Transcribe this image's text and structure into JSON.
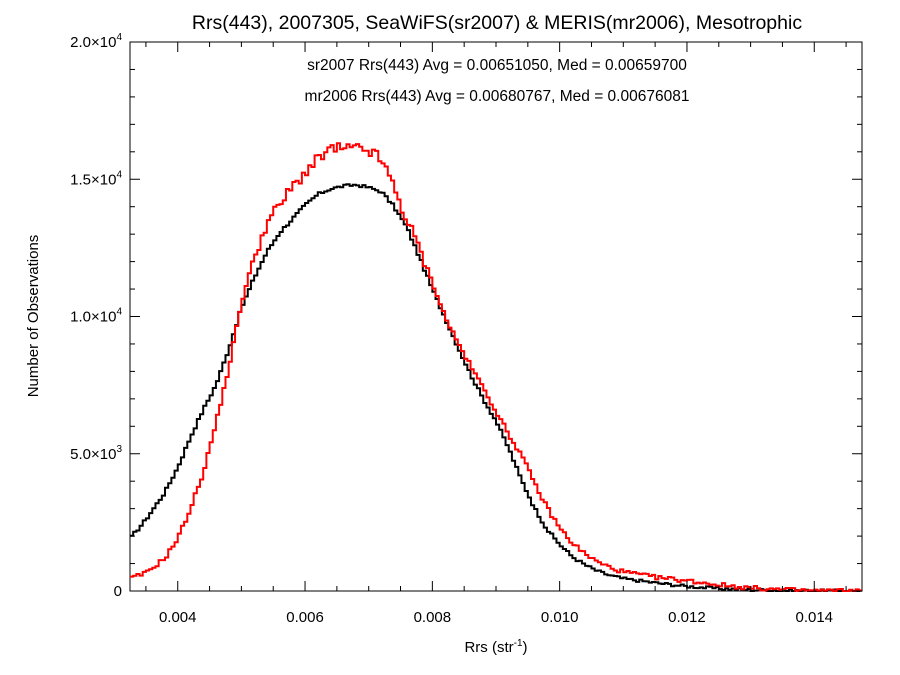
{
  "chart_data": {
    "type": "line",
    "title": "Rrs(443), 2007305, SeaWiFS(sr2007) & MERIS(mr2006), Mesotrophic",
    "xlabel": "Rrs (str",
    "xlabel_sup": "-1",
    "xlabel_end": ")",
    "ylabel": "Number of Observations",
    "xlim": [
      0.00325,
      0.01475
    ],
    "ylim": [
      0,
      20000
    ],
    "x_ticks": [
      {
        "value": 0.004,
        "label": "0.004"
      },
      {
        "value": 0.006,
        "label": "0.006"
      },
      {
        "value": 0.008,
        "label": "0.008"
      },
      {
        "value": 0.01,
        "label": "0.010"
      },
      {
        "value": 0.012,
        "label": "0.012"
      },
      {
        "value": 0.014,
        "label": "0.014"
      }
    ],
    "y_ticks": [
      {
        "value": 0,
        "mant": "0",
        "exp": ""
      },
      {
        "value": 5000,
        "mant": "5.0×10",
        "exp": "3"
      },
      {
        "value": 10000,
        "mant": "1.0×10",
        "exp": "4"
      },
      {
        "value": 15000,
        "mant": "1.5×10",
        "exp": "4"
      },
      {
        "value": 20000,
        "mant": "2.0×10",
        "exp": "4"
      }
    ],
    "annotations": [
      {
        "text": "sr2007 Rrs(443) Avg = 0.00651050, Med = 0.00659700",
        "color": "#000000"
      },
      {
        "text": "mr2006 Rrs(443) Avg = 0.00680767, Med = 0.00676081",
        "color": "#ff0000"
      }
    ],
    "series": [
      {
        "color": "#000000",
        "x": [
          0.00325,
          0.0035,
          0.0038,
          0.004,
          0.0042,
          0.0044,
          0.0045,
          0.0046,
          0.0048,
          0.005,
          0.0052,
          0.0054,
          0.0056,
          0.0058,
          0.006,
          0.0062,
          0.0064,
          0.0066,
          0.0068,
          0.007,
          0.0072,
          0.0074,
          0.0076,
          0.0078,
          0.008,
          0.0082,
          0.0084,
          0.0086,
          0.0088,
          0.009,
          0.0092,
          0.0094,
          0.0096,
          0.0098,
          0.01,
          0.0102,
          0.0104,
          0.0106,
          0.0108,
          0.011,
          0.0115,
          0.012,
          0.0125,
          0.013,
          0.0135,
          0.014,
          0.01475
        ],
        "y": [
          1900,
          2600,
          3600,
          4500,
          5600,
          6600,
          7050,
          7500,
          8800,
          10300,
          11400,
          12350,
          13050,
          13550,
          14050,
          14450,
          14650,
          14750,
          14800,
          14700,
          14550,
          14000,
          13250,
          12150,
          11000,
          9950,
          8900,
          7900,
          7000,
          6200,
          5200,
          4050,
          3050,
          2250,
          1700,
          1250,
          950,
          720,
          560,
          450,
          300,
          170,
          90,
          40,
          15,
          5,
          0
        ]
      },
      {
        "color": "#ff0000",
        "x": [
          0.00325,
          0.0035,
          0.0038,
          0.004,
          0.0042,
          0.0044,
          0.0046,
          0.0048,
          0.005,
          0.0052,
          0.0054,
          0.0056,
          0.0058,
          0.006,
          0.0062,
          0.0064,
          0.0066,
          0.0068,
          0.007,
          0.0072,
          0.0074,
          0.0076,
          0.0078,
          0.008,
          0.0082,
          0.0084,
          0.0086,
          0.0088,
          0.009,
          0.0092,
          0.0094,
          0.0096,
          0.0098,
          0.01,
          0.0102,
          0.0104,
          0.0106,
          0.0108,
          0.011,
          0.0115,
          0.012,
          0.0125,
          0.013,
          0.0135,
          0.014,
          0.01475
        ],
        "y": [
          450,
          650,
          1200,
          1900,
          3000,
          4300,
          6100,
          8100,
          10500,
          12150,
          13400,
          14050,
          14700,
          15250,
          15700,
          16100,
          16100,
          16100,
          16050,
          15700,
          14700,
          13500,
          12450,
          11250,
          10000,
          9050,
          8200,
          7400,
          6550,
          5700,
          4950,
          3950,
          3050,
          2300,
          1750,
          1350,
          1050,
          850,
          700,
          500,
          380,
          230,
          110,
          50,
          15,
          0
        ]
      }
    ]
  }
}
